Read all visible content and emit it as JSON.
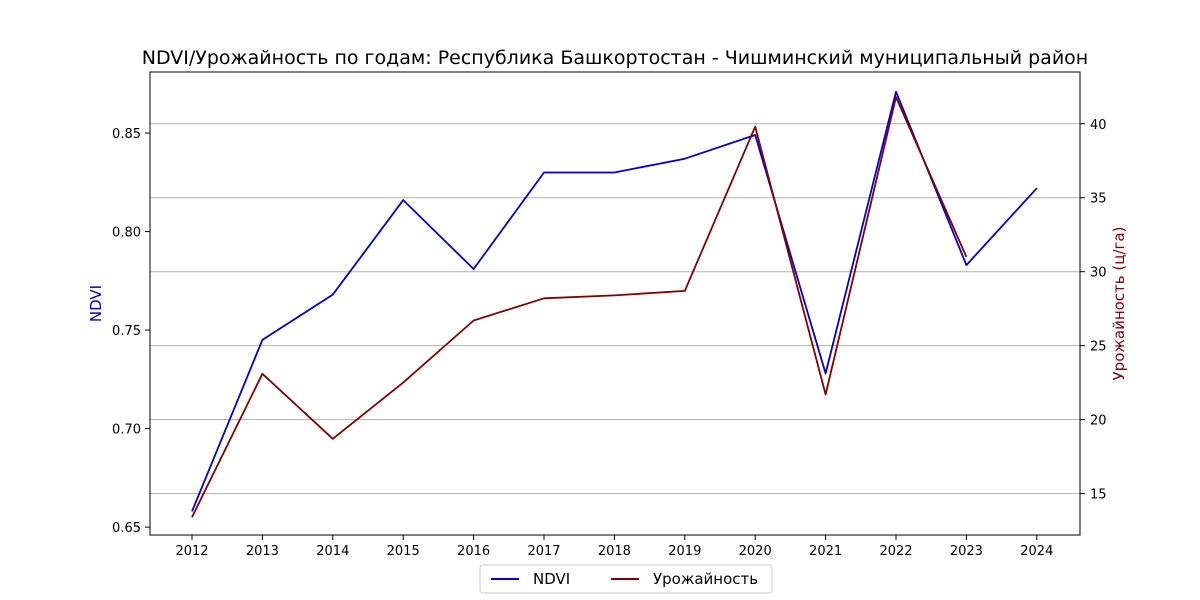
{
  "chart_data": {
    "type": "line",
    "title": "NDVI/Урожайность по годам: Республика Башкортостан - Чишминский муниципальный район",
    "x": [
      "2012",
      "2013",
      "2014",
      "2015",
      "2016",
      "2017",
      "2018",
      "2019",
      "2020",
      "2021",
      "2022",
      "2023",
      "2024"
    ],
    "series": [
      {
        "name": "NDVI",
        "axis": "left",
        "color": "#0000cc",
        "values": [
          0.658,
          0.745,
          0.768,
          0.816,
          0.781,
          0.83,
          0.83,
          0.837,
          0.849,
          0.728,
          0.871,
          0.783,
          0.822
        ]
      },
      {
        "name": "Урожайность",
        "axis": "right",
        "color": "#800000",
        "values": [
          13.4,
          23.1,
          18.7,
          22.5,
          26.7,
          28.2,
          28.4,
          28.7,
          39.8,
          21.7,
          41.8,
          31.0,
          null
        ]
      }
    ],
    "ylabel_left": "NDVI",
    "ylabel_right": "Урожайность (ц/га)",
    "ylim_left": [
      0.646,
      0.881
    ],
    "ylim_right": [
      12.2,
      43.5
    ],
    "yticks_left": [
      0.65,
      0.7,
      0.75,
      0.8,
      0.85
    ],
    "yticks_right": [
      15,
      20,
      25,
      30,
      35,
      40
    ],
    "grid": "horizontal-right-axis",
    "legend_position": "bottom-center"
  }
}
